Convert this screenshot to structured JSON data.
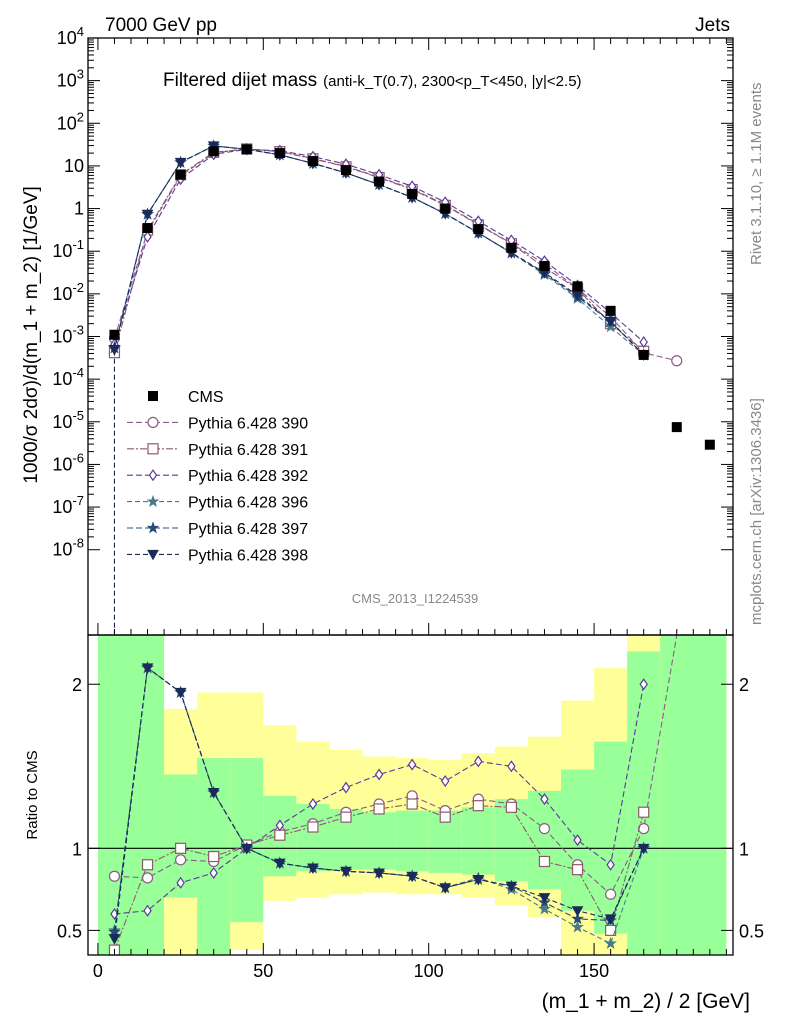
{
  "header": {
    "left": "7000 GeV pp",
    "right": "Jets",
    "rivet": "Rivet 3.1.10, ≥ 1.1M events",
    "mcplots": "mcplots.cern.ch [arXiv:1306.3436]",
    "watermark": "CMS_2013_I1224539"
  },
  "chart_data": {
    "type": "scatter",
    "title": "Filtered dijet mass",
    "subtitle": "(anti-k_T(0.7), 2300<p_T<450, |y|<2.5)",
    "xlabel": "(m_1 + m_2) / 2 [GeV]",
    "ylabel": "1000/σ 2dσ)/d(m_1 + m_2) [1/GeV]",
    "ratio_ylabel": "Ratio to CMS",
    "xlim": [
      -3,
      192
    ],
    "ylim": [
      1e-10,
      10000
    ],
    "yscale": "log",
    "ratio_ylim": [
      0.35,
      2.3
    ],
    "x_ticks": [
      0,
      50,
      100,
      150
    ],
    "y_ticks": [
      {
        "v": 10000,
        "m": "10",
        "e": "4"
      },
      {
        "v": 1000,
        "m": "10",
        "e": "3"
      },
      {
        "v": 100,
        "m": "10",
        "e": "2"
      },
      {
        "v": 10,
        "m": "10",
        "e": ""
      },
      {
        "v": 1,
        "m": "1",
        "e": ""
      },
      {
        "v": 0.1,
        "m": "10",
        "e": "-1"
      },
      {
        "v": 0.01,
        "m": "10",
        "e": "-2"
      },
      {
        "v": 0.001,
        "m": "10",
        "e": "-3"
      },
      {
        "v": 0.0001,
        "m": "10",
        "e": "-4"
      },
      {
        "v": 1e-05,
        "m": "10",
        "e": "-5"
      },
      {
        "v": 1e-06,
        "m": "10",
        "e": "-6"
      },
      {
        "v": 1e-07,
        "m": "10",
        "e": "-7"
      },
      {
        "v": 1e-08,
        "m": "10",
        "e": "-8"
      }
    ],
    "ratio_ticks": [
      {
        "v": 0.5,
        "l": "0.5"
      },
      {
        "v": 1,
        "l": "1"
      },
      {
        "v": 2,
        "l": "2"
      }
    ],
    "legend_position": "left-middle",
    "x": [
      5,
      15,
      25,
      35,
      45,
      55,
      65,
      75,
      85,
      95,
      105,
      115,
      125,
      135,
      145,
      155,
      165,
      175,
      185
    ],
    "cms": {
      "name": "CMS",
      "values": [
        0.0011,
        0.35,
        6.2,
        22,
        24.5,
        20,
        13,
        8,
        4.3,
        2.2,
        1.0,
        0.33,
        0.12,
        0.045,
        0.015,
        0.004,
        0.00037,
        7.5e-06,
        2.9e-06
      ]
    },
    "bands": [
      {
        "x0": 0,
        "x1": 10,
        "y_lo": 0.35,
        "y_hi": 2.3,
        "g_lo": 0.35,
        "g_hi": 2.3
      },
      {
        "x0": 10,
        "x1": 20,
        "y_lo": 0.35,
        "y_hi": 2.3,
        "g_lo": 0.35,
        "g_hi": 2.3
      },
      {
        "x0": 20,
        "x1": 30,
        "y_lo": 0.35,
        "y_hi": 1.85,
        "g_lo": 0.7,
        "g_hi": 1.45
      },
      {
        "x0": 30,
        "x1": 40,
        "y_lo": 0.35,
        "y_hi": 1.95,
        "g_lo": 0.35,
        "g_hi": 1.55
      },
      {
        "x0": 40,
        "x1": 50,
        "y_lo": 0.38,
        "y_hi": 1.95,
        "g_lo": 0.55,
        "g_hi": 1.55
      },
      {
        "x0": 50,
        "x1": 60,
        "y_lo": 0.68,
        "y_hi": 1.75,
        "g_lo": 0.83,
        "g_hi": 1.32
      },
      {
        "x0": 60,
        "x1": 70,
        "y_lo": 0.7,
        "y_hi": 1.65,
        "g_lo": 0.86,
        "g_hi": 1.27
      },
      {
        "x0": 70,
        "x1": 80,
        "y_lo": 0.72,
        "y_hi": 1.6,
        "g_lo": 0.87,
        "g_hi": 1.24
      },
      {
        "x0": 80,
        "x1": 90,
        "y_lo": 0.73,
        "y_hi": 1.56,
        "g_lo": 0.87,
        "g_hi": 1.22
      },
      {
        "x0": 90,
        "x1": 100,
        "y_lo": 0.72,
        "y_hi": 1.55,
        "g_lo": 0.86,
        "g_hi": 1.23
      },
      {
        "x0": 100,
        "x1": 110,
        "y_lo": 0.72,
        "y_hi": 1.54,
        "g_lo": 0.85,
        "g_hi": 1.23
      },
      {
        "x0": 110,
        "x1": 120,
        "y_lo": 0.7,
        "y_hi": 1.58,
        "g_lo": 0.84,
        "g_hi": 1.25
      },
      {
        "x0": 120,
        "x1": 130,
        "y_lo": 0.65,
        "y_hi": 1.62,
        "g_lo": 0.8,
        "g_hi": 1.3
      },
      {
        "x0": 130,
        "x1": 140,
        "y_lo": 0.58,
        "y_hi": 1.68,
        "g_lo": 0.75,
        "g_hi": 1.35
      },
      {
        "x0": 140,
        "x1": 150,
        "y_lo": 0.35,
        "y_hi": 1.9,
        "g_lo": 0.62,
        "g_hi": 1.48
      },
      {
        "x0": 150,
        "x1": 160,
        "y_lo": 0.35,
        "y_hi": 2.1,
        "g_lo": 0.48,
        "g_hi": 1.65
      },
      {
        "x0": 160,
        "x1": 170,
        "y_lo": 0.35,
        "y_hi": 2.3,
        "g_lo": 0.35,
        "g_hi": 2.2
      },
      {
        "x0": 170,
        "x1": 190,
        "y_lo": 0.35,
        "y_hi": 2.3,
        "g_lo": 0.35,
        "g_hi": 2.3
      }
    ],
    "series": [
      {
        "name": "Pythia 6.428 390",
        "marker": "circle",
        "color": "#8e5a8a",
        "dash": "6,3",
        "ratio": [
          0.83,
          0.82,
          0.93,
          0.92,
          1.02,
          1.1,
          1.15,
          1.22,
          1.27,
          1.32,
          1.23,
          1.3,
          1.27,
          1.12,
          0.9,
          0.72,
          1.12,
          36
        ]
      },
      {
        "name": "Pythia 6.428 391",
        "marker": "square",
        "color": "#8e5a6a",
        "dash": "7,2,2,2",
        "ratio": [
          0.38,
          0.9,
          1.0,
          0.95,
          1.02,
          1.08,
          1.13,
          1.19,
          1.24,
          1.27,
          1.19,
          1.26,
          1.25,
          0.92,
          0.87,
          0.5,
          1.22
        ]
      },
      {
        "name": "Pythia 6.428 392",
        "marker": "diamond",
        "color": "#5a3a9a",
        "dash": "6,3",
        "ratio": [
          0.6,
          0.62,
          0.79,
          0.85,
          1.0,
          1.14,
          1.27,
          1.37,
          1.45,
          1.51,
          1.41,
          1.53,
          1.5,
          1.3,
          1.05,
          0.9,
          2.0
        ]
      },
      {
        "name": "Pythia 6.428 396",
        "marker": "star",
        "color": "#4a7a8a",
        "dash": "5,3",
        "ratio": [
          0.5,
          2.1,
          1.95,
          1.34,
          1.0,
          0.91,
          0.88,
          0.86,
          0.85,
          0.83,
          0.76,
          0.82,
          0.75,
          0.63,
          0.52,
          0.42,
          1.0
        ]
      },
      {
        "name": "Pythia 6.428 397",
        "marker": "star",
        "color": "#2a4a7a",
        "dash": "6,3",
        "ratio": [
          0.49,
          2.1,
          1.95,
          1.34,
          1.0,
          0.91,
          0.88,
          0.86,
          0.85,
          0.83,
          0.76,
          0.81,
          0.77,
          0.67,
          0.57,
          0.56,
          1.0
        ]
      },
      {
        "name": "Pythia 6.428 398",
        "marker": "triangle-down",
        "color": "#1a2a5a",
        "dash": "5,3",
        "ratio": [
          0.45,
          2.1,
          1.95,
          1.34,
          1.0,
          0.91,
          0.88,
          0.86,
          0.85,
          0.83,
          0.76,
          0.81,
          0.77,
          0.7,
          0.62,
          0.57,
          1.0
        ]
      }
    ]
  }
}
